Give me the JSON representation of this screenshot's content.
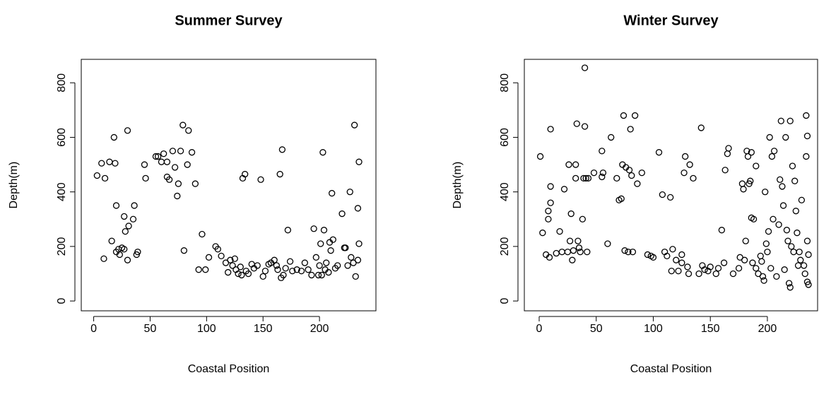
{
  "chart_data": [
    {
      "type": "scatter",
      "title": "Summer Survey",
      "x_label": "Coastal Position",
      "y_label": "Depth(m)",
      "xlim": [
        -11,
        250
      ],
      "ylim": [
        -36,
        886
      ],
      "xticks": [
        0,
        50,
        100,
        150,
        200
      ],
      "yticks": [
        0,
        200,
        400,
        600,
        800
      ],
      "color": "#000000",
      "x": [
        3,
        7,
        10,
        9,
        14,
        16,
        18,
        19,
        20,
        20,
        22,
        23,
        25,
        27,
        27,
        28,
        30,
        30,
        31,
        35,
        36,
        38,
        39,
        45,
        46,
        55,
        57,
        60,
        62,
        65,
        65,
        67,
        70,
        72,
        74,
        75,
        77,
        79,
        80,
        83,
        84,
        87,
        90,
        93,
        96,
        99,
        102,
        108,
        110,
        113,
        117,
        119,
        121,
        123,
        125,
        126,
        128,
        130,
        131,
        132,
        134,
        135,
        137,
        140,
        142,
        145,
        148,
        150,
        152,
        155,
        157,
        160,
        162,
        163,
        165,
        166,
        167,
        168,
        170,
        172,
        174,
        176,
        180,
        184,
        187,
        190,
        193,
        195,
        197,
        199,
        200,
        201,
        202,
        203,
        204,
        205,
        206,
        208,
        209,
        210,
        211,
        212,
        214,
        216,
        220,
        222,
        223,
        225,
        227,
        228,
        230,
        231,
        232,
        234,
        234,
        235,
        235
      ],
      "values": [
        460,
        505,
        450,
        155,
        510,
        220,
        600,
        505,
        350,
        180,
        190,
        170,
        195,
        190,
        310,
        255,
        150,
        625,
        275,
        300,
        350,
        170,
        180,
        500,
        450,
        530,
        530,
        510,
        540,
        510,
        455,
        445,
        550,
        490,
        385,
        430,
        550,
        645,
        185,
        500,
        625,
        545,
        430,
        115,
        245,
        115,
        160,
        200,
        190,
        165,
        140,
        105,
        150,
        130,
        155,
        115,
        100,
        125,
        95,
        450,
        465,
        110,
        100,
        135,
        120,
        130,
        445,
        90,
        110,
        135,
        140,
        150,
        130,
        115,
        465,
        85,
        555,
        95,
        120,
        260,
        145,
        110,
        115,
        110,
        140,
        115,
        95,
        265,
        160,
        95,
        130,
        210,
        95,
        545,
        260,
        115,
        140,
        105,
        215,
        185,
        395,
        225,
        120,
        130,
        320,
        195,
        195,
        130,
        400,
        160,
        140,
        645,
        90,
        150,
        340,
        510,
        210
      ]
    },
    {
      "type": "scatter",
      "title": "Winter Survey",
      "x_label": "Coastal Position",
      "y_label": "Depth(m)",
      "xlim": [
        -13,
        244
      ],
      "ylim": [
        -36,
        886
      ],
      "xticks": [
        0,
        50,
        100,
        150,
        200
      ],
      "yticks": [
        0,
        200,
        400,
        600,
        800
      ],
      "color": "#000000",
      "x": [
        1,
        3,
        6,
        8,
        8,
        9,
        10,
        10,
        10,
        15,
        18,
        20,
        22,
        25,
        26,
        27,
        28,
        29,
        30,
        32,
        32,
        33,
        34,
        35,
        36,
        38,
        39,
        40,
        40,
        41,
        42,
        43,
        48,
        55,
        55,
        56,
        60,
        63,
        68,
        70,
        72,
        73,
        74,
        75,
        76,
        78,
        79,
        80,
        81,
        82,
        84,
        86,
        90,
        95,
        98,
        100,
        105,
        108,
        110,
        112,
        115,
        116,
        117,
        120,
        122,
        125,
        125,
        127,
        128,
        130,
        131,
        132,
        135,
        140,
        142,
        143,
        145,
        148,
        150,
        155,
        157,
        160,
        162,
        163,
        165,
        166,
        170,
        175,
        176,
        178,
        179,
        180,
        181,
        182,
        183,
        184,
        185,
        186,
        186,
        187,
        188,
        190,
        190,
        192,
        194,
        195,
        196,
        197,
        198,
        199,
        200,
        201,
        202,
        203,
        204,
        205,
        206,
        208,
        210,
        211,
        212,
        213,
        214,
        215,
        216,
        217,
        218,
        219,
        220,
        220,
        221,
        222,
        223,
        224,
        225,
        226,
        227,
        228,
        229,
        230,
        232,
        233,
        234,
        234,
        235,
        235,
        235,
        236,
        236
      ],
      "values": [
        530,
        250,
        170,
        330,
        300,
        160,
        420,
        630,
        360,
        175,
        255,
        180,
        410,
        180,
        500,
        220,
        320,
        150,
        185,
        500,
        450,
        650,
        220,
        195,
        180,
        300,
        450,
        855,
        640,
        450,
        180,
        450,
        470,
        550,
        455,
        470,
        210,
        600,
        450,
        370,
        375,
        500,
        680,
        185,
        490,
        180,
        480,
        630,
        460,
        180,
        680,
        430,
        470,
        170,
        165,
        160,
        545,
        390,
        180,
        165,
        380,
        110,
        190,
        150,
        110,
        140,
        170,
        470,
        530,
        125,
        100,
        500,
        450,
        100,
        635,
        130,
        115,
        110,
        125,
        100,
        120,
        260,
        140,
        480,
        540,
        560,
        100,
        120,
        160,
        430,
        410,
        150,
        220,
        550,
        530,
        430,
        440,
        545,
        305,
        140,
        300,
        120,
        495,
        100,
        165,
        145,
        90,
        75,
        400,
        210,
        180,
        255,
        600,
        120,
        530,
        300,
        550,
        90,
        280,
        445,
        660,
        420,
        350,
        115,
        600,
        260,
        220,
        65,
        50,
        660,
        200,
        495,
        180,
        440,
        330,
        250,
        130,
        180,
        150,
        370,
        130,
        100,
        680,
        530,
        605,
        220,
        70,
        60,
        170
      ]
    }
  ]
}
